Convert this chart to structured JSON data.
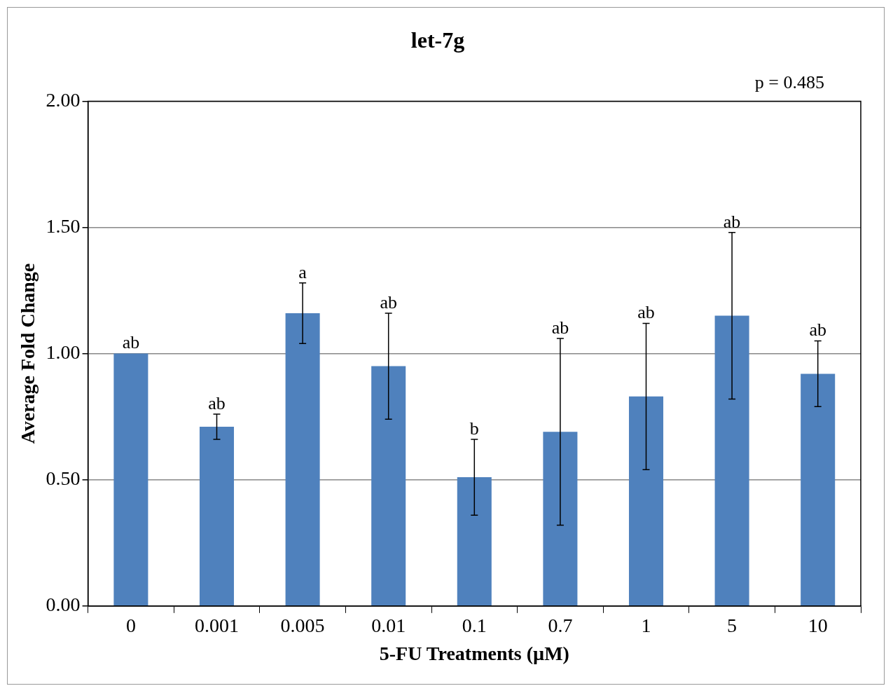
{
  "chart_data": {
    "type": "bar",
    "title": "let-7g",
    "xlabel": "5-FU Treatments (µM)",
    "ylabel": "Average Fold Change",
    "categories": [
      "0",
      "0.001",
      "0.005",
      "0.01",
      "0.1",
      "0.7",
      "1",
      "5",
      "10"
    ],
    "values": [
      1.0,
      0.71,
      1.16,
      0.95,
      0.51,
      0.69,
      0.83,
      1.15,
      0.92
    ],
    "errors": [
      null,
      0.05,
      0.12,
      0.21,
      0.15,
      0.37,
      0.29,
      0.33,
      0.13
    ],
    "color": "#4f81bd",
    "ylim": [
      0,
      2
    ],
    "yticks": [
      {
        "value": 0,
        "label": "0.00"
      },
      {
        "value": 0.5,
        "label": "0.50"
      },
      {
        "value": 1,
        "label": "1.00"
      },
      {
        "value": 1.5,
        "label": "1.50"
      },
      {
        "value": 2,
        "label": "2.00"
      }
    ],
    "grid": "y",
    "legend": false,
    "annotations": [
      "p = 0.485",
      {
        "text": "ab",
        "x": "0",
        "y": 1.0
      },
      {
        "text": "ab",
        "x": "0.001",
        "y": 0.76
      },
      {
        "text": "a",
        "x": "0.005",
        "y": 1.28
      },
      {
        "text": "ab",
        "x": "0.01",
        "y": 1.16
      },
      {
        "text": "b",
        "x": "0.1",
        "y": 0.66
      },
      {
        "text": "ab",
        "x": "0.7",
        "y": 1.06
      },
      {
        "text": "ab",
        "x": "1",
        "y": 1.12
      },
      {
        "text": "ab",
        "x": "5",
        "y": 1.48
      },
      {
        "text": "ab",
        "x": "10",
        "y": 1.05
      }
    ]
  }
}
